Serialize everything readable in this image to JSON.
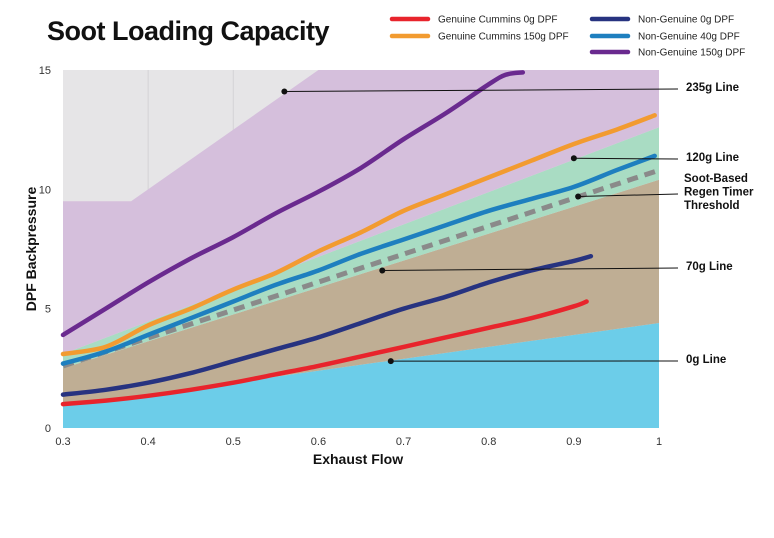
{
  "chart_data": {
    "type": "area",
    "title": "Soot Loading Capacity",
    "xlabel": "Exhaust Flow",
    "ylabel": "DPF Backpressure",
    "xlim": [
      0.3,
      1.0
    ],
    "ylim": [
      0,
      15
    ],
    "x_ticks": [
      "0.3",
      "0.4",
      "0.5",
      "0.6",
      "0.7",
      "0.8",
      "0.9",
      "1"
    ],
    "y_ticks": [
      "0",
      "5",
      "10",
      "15"
    ],
    "grid": false,
    "legend_position": "top-right",
    "bands": [
      {
        "name": "0g Line",
        "color": "#6ccde9",
        "lower": [
          [
            0.3,
            0.0
          ],
          [
            1.0,
            0.0
          ]
        ],
        "upper": [
          [
            0.3,
            0.9
          ],
          [
            1.0,
            4.4
          ]
        ]
      },
      {
        "name": "70g Line",
        "color": "#bfae94",
        "lower": [
          [
            0.3,
            0.9
          ],
          [
            1.0,
            4.4
          ]
        ],
        "upper": [
          [
            0.3,
            2.5
          ],
          [
            1.0,
            10.4
          ]
        ]
      },
      {
        "name": "120g Line",
        "color": "#a9dcc3",
        "lower": [
          [
            0.3,
            2.5
          ],
          [
            1.0,
            10.4
          ]
        ],
        "upper": [
          [
            0.3,
            3.1
          ],
          [
            1.0,
            12.6
          ]
        ]
      },
      {
        "name": "235g Line",
        "color": "#d5bfdc",
        "lower": [
          [
            0.3,
            3.1
          ],
          [
            1.0,
            12.6
          ]
        ],
        "upper": [
          [
            0.3,
            9.5
          ],
          [
            0.38,
            9.5
          ],
          [
            0.6,
            15.0
          ],
          [
            1.0,
            15.0
          ]
        ]
      }
    ],
    "unshaded_region_color": "#e6e5e7",
    "series": [
      {
        "name": "Genuine Cummins 0g DPF",
        "color": "#e8242c",
        "x": [
          0.3,
          0.35,
          0.4,
          0.45,
          0.5,
          0.55,
          0.6,
          0.65,
          0.7,
          0.75,
          0.8,
          0.85,
          0.9,
          0.915
        ],
        "y": [
          1.0,
          1.15,
          1.35,
          1.6,
          1.9,
          2.25,
          2.6,
          3.0,
          3.4,
          3.8,
          4.2,
          4.6,
          5.1,
          5.3
        ]
      },
      {
        "name": "Genuine Cummins 150g DPF",
        "color": "#f29b30",
        "x": [
          0.3,
          0.35,
          0.4,
          0.45,
          0.5,
          0.55,
          0.6,
          0.65,
          0.7,
          0.75,
          0.8,
          0.85,
          0.9,
          0.95,
          0.995
        ],
        "y": [
          3.1,
          3.4,
          4.3,
          5.0,
          5.8,
          6.5,
          7.4,
          8.2,
          9.1,
          9.8,
          10.5,
          11.2,
          11.9,
          12.5,
          13.1
        ]
      },
      {
        "name": "Non-Genuine 0g DPF",
        "color": "#273380",
        "x": [
          0.3,
          0.35,
          0.4,
          0.45,
          0.5,
          0.55,
          0.6,
          0.65,
          0.7,
          0.75,
          0.8,
          0.85,
          0.9,
          0.92
        ],
        "y": [
          1.4,
          1.6,
          1.9,
          2.3,
          2.8,
          3.3,
          3.8,
          4.4,
          5.0,
          5.5,
          6.1,
          6.6,
          7.0,
          7.2
        ]
      },
      {
        "name": "Non-Genuine 40g DPF",
        "color": "#1e7fbf",
        "x": [
          0.3,
          0.35,
          0.4,
          0.45,
          0.5,
          0.55,
          0.6,
          0.65,
          0.7,
          0.75,
          0.8,
          0.85,
          0.9,
          0.95,
          0.995
        ],
        "y": [
          2.7,
          3.2,
          3.9,
          4.6,
          5.3,
          6.0,
          6.6,
          7.3,
          7.9,
          8.5,
          9.1,
          9.6,
          10.1,
          10.8,
          11.4
        ]
      },
      {
        "name": "Non-Genuine 150g DPF",
        "color": "#6a2a8f",
        "x": [
          0.3,
          0.35,
          0.4,
          0.45,
          0.5,
          0.55,
          0.6,
          0.65,
          0.7,
          0.75,
          0.8,
          0.82,
          0.84
        ],
        "y": [
          3.9,
          5.0,
          6.1,
          7.1,
          8.0,
          9.0,
          9.9,
          10.9,
          12.1,
          13.2,
          14.4,
          14.8,
          14.9
        ]
      }
    ],
    "threshold": {
      "color": "#8a8a8a",
      "x": [
        0.3,
        1.0
      ],
      "y": [
        2.6,
        10.8
      ]
    },
    "annotations": [
      {
        "label": "235g Line",
        "x": 0.56,
        "y": 14.1
      },
      {
        "label": "120g Line",
        "x": 0.9,
        "y": 11.3
      },
      {
        "label": "Soot-Based Regen Timer Threshold",
        "x": 0.905,
        "y": 9.7
      },
      {
        "label": "70g Line",
        "x": 0.675,
        "y": 6.6
      },
      {
        "label": "0g Line",
        "x": 0.685,
        "y": 2.8
      }
    ]
  }
}
